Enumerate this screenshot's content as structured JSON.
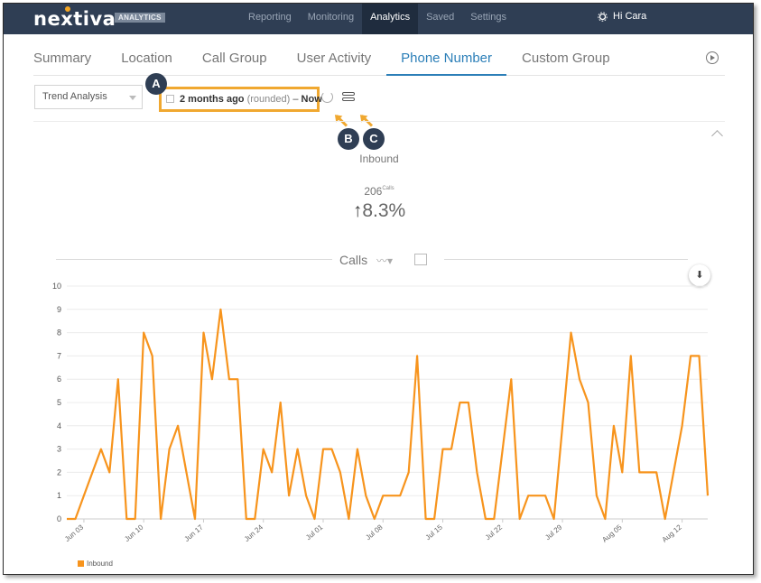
{
  "app": {
    "logo": "nextiva",
    "badge": "ANALYTICS"
  },
  "nav": [
    {
      "label": "Reporting",
      "active": false
    },
    {
      "label": "Monitoring",
      "active": false
    },
    {
      "label": "Analytics",
      "active": true
    },
    {
      "label": "Saved",
      "active": false
    },
    {
      "label": "Settings",
      "active": false
    }
  ],
  "user": {
    "greeting": "Hi Cara",
    "icon": "gear-icon"
  },
  "tabs": [
    {
      "label": "Summary",
      "active": false
    },
    {
      "label": "Location",
      "active": false
    },
    {
      "label": "Call Group",
      "active": false
    },
    {
      "label": "User Activity",
      "active": false
    },
    {
      "label": "Phone Number",
      "active": true
    },
    {
      "label": "Custom Group",
      "active": false
    }
  ],
  "controls": {
    "view_select": "Trend Analysis",
    "range_start": "2 months ago",
    "range_rounded": "(rounded)",
    "range_sep": "–",
    "range_end": "Now"
  },
  "annotations": {
    "a": "A",
    "b": "B",
    "c": "C"
  },
  "metric": {
    "title": "Inbound",
    "count": "206",
    "count_unit": "Calls",
    "change_arrow": "↑",
    "change": "8.3%"
  },
  "chart": {
    "title": "Calls",
    "legend_label": "Inbound",
    "download_icon": "⬇",
    "type_icon": "〰▾"
  },
  "colors": {
    "accent": "#f7941d",
    "nav_bg": "#2f3e54",
    "tab_active": "#2c7fb8",
    "highlight": "#f0a830"
  },
  "chart_data": {
    "type": "line",
    "title": "Calls",
    "xlabel": "",
    "ylabel": "",
    "ylim": [
      0,
      10
    ],
    "yticks": [
      0,
      1,
      2,
      3,
      4,
      5,
      6,
      7,
      8,
      9,
      10
    ],
    "xticks": [
      "Jun 03",
      "Jun 10",
      "Jun 17",
      "Jun 24",
      "Jul 01",
      "Jul 08",
      "Jul 15",
      "Jul 22",
      "Jul 29",
      "Aug 05",
      "Aug 12"
    ],
    "x_start": "Jun 01",
    "series": [
      {
        "name": "Inbound",
        "values": [
          0,
          0,
          1,
          2,
          3,
          2,
          6,
          0,
          0,
          8,
          7,
          0,
          3,
          4,
          2,
          0,
          8,
          6,
          9,
          6,
          6,
          0,
          0,
          3,
          2,
          5,
          1,
          3,
          1,
          0,
          3,
          3,
          2,
          0,
          3,
          1,
          0,
          1,
          1,
          1,
          2,
          7,
          0,
          0,
          3,
          3,
          5,
          5,
          2,
          0,
          0,
          3,
          6,
          0,
          1,
          1,
          1,
          0,
          4,
          8,
          6,
          5,
          1,
          0,
          4,
          2,
          7,
          2,
          2,
          2,
          0,
          2,
          4,
          7,
          7,
          1
        ]
      }
    ]
  }
}
